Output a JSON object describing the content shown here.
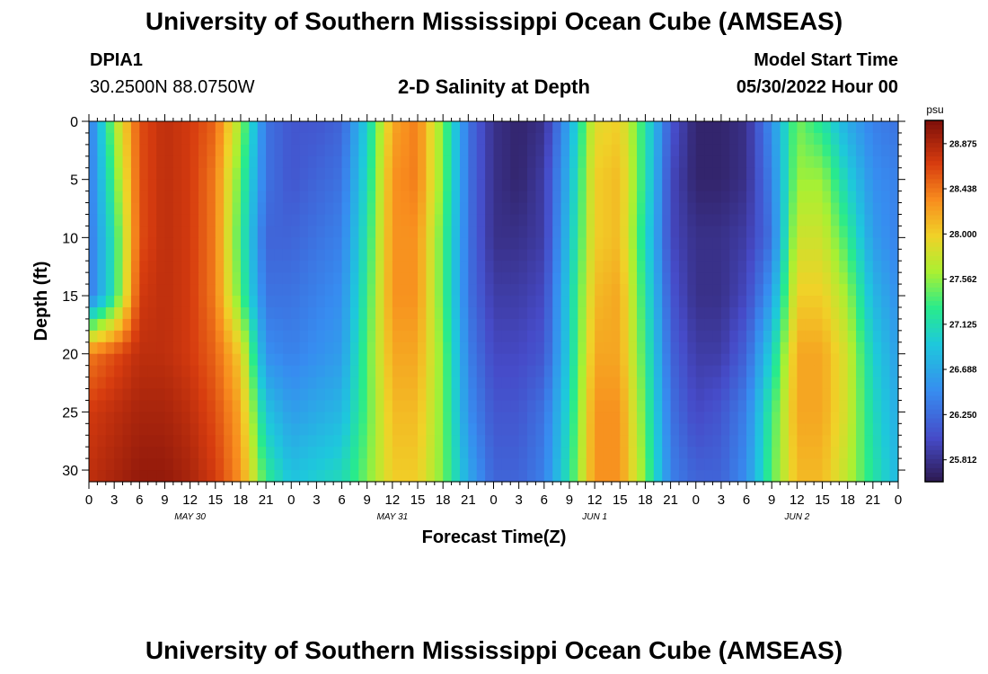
{
  "header": {
    "title": "University of Southern Mississippi Ocean Cube (AMSEAS)",
    "station_id": "DPIA1",
    "station_coords": "30.2500N  88.0750W",
    "plot_title": "2-D Salinity at Depth",
    "model_start_label": "Model Start Time",
    "model_start_value": "05/30/2022 Hour 00"
  },
  "footer": {
    "title": "University of Southern Mississippi Ocean Cube (AMSEAS)"
  },
  "chart_data": {
    "type": "heatmap",
    "title": "2-D Salinity at Depth",
    "xlabel": "Forecast Time(Z)",
    "ylabel": "Depth (ft)",
    "x_unit": "hours since 05/30/2022 00Z",
    "xlim": [
      0,
      96
    ],
    "ylim": [
      31,
      0
    ],
    "x_tick_values": [
      0,
      3,
      6,
      9,
      12,
      15,
      18,
      21,
      24,
      27,
      30,
      33,
      36,
      39,
      42,
      45,
      48,
      51,
      54,
      57,
      60,
      63,
      66,
      69,
      72,
      75,
      78,
      81,
      84,
      87,
      90,
      93,
      96
    ],
    "x_tick_labels": [
      "0",
      "3",
      "6",
      "9",
      "12",
      "15",
      "18",
      "21",
      "0",
      "3",
      "6",
      "9",
      "12",
      "15",
      "18",
      "21",
      "0",
      "3",
      "6",
      "9",
      "12",
      "15",
      "18",
      "21",
      "0",
      "3",
      "6",
      "9",
      "12",
      "15",
      "18",
      "21",
      "0"
    ],
    "day_labels": [
      {
        "hour": 12,
        "label": "MAY 30"
      },
      {
        "hour": 36,
        "label": "MAY 31"
      },
      {
        "hour": 60,
        "label": "JUN 1"
      },
      {
        "hour": 84,
        "label": "JUN 2"
      }
    ],
    "y_ticks": [
      0,
      5,
      10,
      15,
      20,
      25,
      30
    ],
    "colorbar": {
      "unit": "psu",
      "min": 25.6,
      "max": 29.1,
      "tick_values": [
        28.875,
        28.438,
        28.0,
        27.562,
        27.125,
        26.688,
        26.25,
        25.812
      ],
      "tick_labels": [
        "28.875",
        "28.438",
        "28.000",
        "27.562",
        "27.125",
        "26.688",
        "26.250",
        "25.812"
      ]
    },
    "depth_levels_ft": [
      0,
      5,
      10,
      15,
      20,
      25,
      31
    ],
    "hours": [
      0,
      3,
      6,
      9,
      12,
      15,
      18,
      21,
      24,
      27,
      30,
      33,
      36,
      39,
      42,
      45,
      48,
      51,
      54,
      57,
      60,
      63,
      66,
      69,
      72,
      75,
      78,
      81,
      84,
      87,
      90,
      93,
      96
    ],
    "salinity_psu": [
      [
        26.3,
        27.6,
        28.6,
        28.8,
        28.7,
        28.5,
        27.6,
        26.3,
        26.1,
        26.1,
        26.2,
        27.0,
        28.2,
        28.4,
        27.5,
        26.3,
        25.8,
        25.7,
        25.8,
        26.7,
        27.9,
        28.0,
        27.2,
        26.1,
        25.7,
        25.7,
        25.8,
        26.5,
        27.5,
        27.2,
        26.7,
        26.4,
        26.3
      ],
      [
        26.3,
        27.4,
        28.6,
        28.8,
        28.7,
        28.4,
        27.4,
        26.3,
        26.1,
        26.2,
        26.3,
        27.1,
        28.3,
        28.4,
        27.5,
        26.3,
        25.8,
        25.7,
        25.9,
        26.8,
        28.0,
        28.1,
        27.2,
        26.0,
        25.7,
        25.7,
        25.8,
        26.4,
        27.6,
        27.6,
        27.0,
        26.5,
        26.4
      ],
      [
        26.3,
        27.2,
        28.6,
        28.8,
        28.7,
        28.4,
        27.3,
        26.2,
        26.2,
        26.3,
        26.4,
        27.2,
        28.3,
        28.3,
        27.4,
        26.3,
        25.8,
        25.8,
        25.9,
        26.9,
        28.0,
        28.1,
        27.1,
        26.0,
        25.8,
        25.8,
        25.9,
        26.3,
        27.8,
        27.8,
        27.3,
        26.6,
        26.4
      ],
      [
        26.3,
        27.2,
        28.7,
        28.8,
        28.7,
        28.4,
        27.4,
        26.3,
        26.3,
        26.4,
        26.5,
        27.3,
        28.3,
        28.3,
        27.4,
        26.3,
        25.9,
        25.9,
        26.0,
        27.0,
        28.1,
        28.2,
        27.2,
        26.1,
        25.8,
        25.8,
        26.0,
        26.6,
        28.0,
        28.0,
        27.6,
        26.8,
        26.5
      ],
      [
        28.4,
        28.6,
        28.8,
        28.8,
        28.7,
        28.5,
        28.0,
        26.5,
        26.4,
        26.5,
        26.6,
        27.4,
        28.2,
        28.2,
        27.5,
        26.4,
        26.0,
        26.0,
        26.1,
        27.0,
        28.2,
        28.2,
        27.3,
        26.2,
        25.9,
        25.9,
        26.2,
        27.0,
        28.2,
        28.2,
        27.8,
        27.0,
        26.6
      ],
      [
        28.7,
        28.8,
        28.9,
        28.9,
        28.8,
        28.6,
        28.2,
        26.9,
        26.6,
        26.7,
        26.8,
        27.4,
        28.1,
        28.1,
        27.5,
        26.5,
        26.1,
        26.1,
        26.3,
        27.1,
        28.3,
        28.3,
        27.4,
        26.3,
        26.0,
        26.1,
        26.4,
        27.3,
        28.2,
        28.2,
        27.8,
        27.1,
        26.7
      ],
      [
        28.8,
        28.9,
        29.0,
        29.0,
        28.9,
        28.7,
        28.3,
        27.3,
        26.9,
        27.0,
        27.1,
        27.5,
        28.0,
        28.0,
        27.5,
        26.7,
        26.2,
        26.2,
        26.4,
        27.2,
        28.3,
        28.3,
        27.5,
        26.4,
        26.2,
        26.2,
        26.5,
        27.4,
        28.1,
        28.1,
        27.7,
        27.2,
        26.8
      ]
    ]
  }
}
